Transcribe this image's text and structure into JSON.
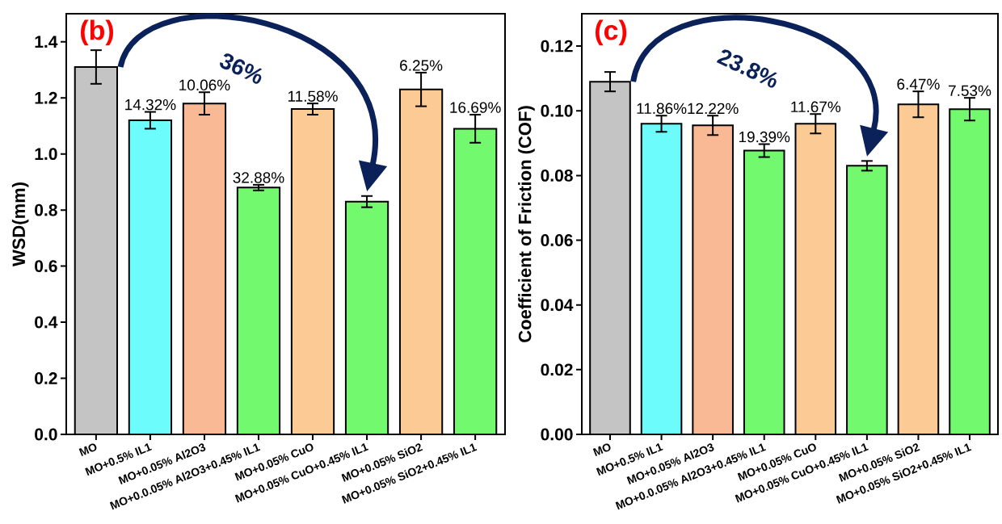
{
  "chart_data": [
    {
      "type": "bar",
      "ylabel": "WSD(mm)",
      "categories": [
        "MO",
        "MO+0.5% IL1",
        "MO+0.05% Al2O3",
        "MO+0.0.05% Al2O3+0.45% IL1",
        "MO+0.05% CuO",
        "MO+0.05% CuO+0.45% IL1",
        "MO+0.05% SiO2",
        "MO+0.05% SiO2+0.45% IL1"
      ],
      "values": [
        1.31,
        1.12,
        1.18,
        0.88,
        1.16,
        0.83,
        1.23,
        1.09
      ],
      "errors": [
        0.06,
        0.03,
        0.04,
        0.01,
        0.02,
        0.02,
        0.06,
        0.05
      ],
      "colors": [
        "#c4c4c4",
        "#6cfcfc",
        "#f9b994",
        "#72f96e",
        "#fcca94",
        "#72f96e",
        "#fcca94",
        "#72f96e"
      ],
      "annotations": [
        "(b)",
        "36%",
        {
          "text": "14.32%",
          "x": "MO+0.5% IL1",
          "y": 1.15
        },
        {
          "text": "10.06%",
          "x": "MO+0.05% Al2O3",
          "y": 1.22
        },
        {
          "text": "32.88%",
          "x": "MO+0.0.05% Al2O3+0.45% IL1",
          "y": 0.89
        },
        {
          "text": "11.58%",
          "x": "MO+0.05% CuO",
          "y": 1.18
        },
        {
          "text": "6.25%",
          "x": "MO+0.05% SiO2",
          "y": 1.29
        },
        {
          "text": "16.69%",
          "x": "MO+0.05% SiO2+0.45% IL1",
          "y": 1.14
        }
      ],
      "ylim": [
        0,
        1.5
      ],
      "yticks": [
        {
          "value": 0,
          "label": "0.0"
        },
        {
          "value": 0.2,
          "label": "0.2"
        },
        {
          "value": 0.4,
          "label": "0.4"
        },
        {
          "value": 0.6,
          "label": "0.6"
        },
        {
          "value": 0.8,
          "label": "0.8"
        },
        {
          "value": 1,
          "label": "1.0"
        },
        {
          "value": 1.2,
          "label": "1.2"
        },
        {
          "value": 1.4,
          "label": "1.4"
        }
      ]
    },
    {
      "type": "bar",
      "ylabel": "Coefficient of Friction (COF)",
      "categories": [
        "MO",
        "MO+0.5% IL1",
        "MO+0.05% Al2O3",
        "MO+0.0.05% Al2O3+0.45% IL1",
        "MO+0.05% CuO",
        "MO+0.05% CuO+0.45% IL1",
        "MO+0.05% SiO2",
        "MO+0.05% SiO2+0.45% IL1"
      ],
      "values": [
        0.109,
        0.096,
        0.0955,
        0.0877,
        0.096,
        0.083,
        0.102,
        0.1005
      ],
      "errors": [
        0.003,
        0.0025,
        0.003,
        0.002,
        0.003,
        0.0015,
        0.004,
        0.0035
      ],
      "colors": [
        "#c4c4c4",
        "#6cfcfc",
        "#f9b994",
        "#72f96e",
        "#fcca94",
        "#72f96e",
        "#fcca94",
        "#72f96e"
      ],
      "annotations": [
        "(c)",
        "23.8%",
        {
          "text": "11.86%",
          "x": "MO+0.5% IL1",
          "y": 0.0985
        },
        {
          "text": "12.22%",
          "x": "MO+0.05% Al2O3",
          "y": 0.0985
        },
        {
          "text": "19.39%",
          "x": "MO+0.0.05% Al2O3+0.45% IL1",
          "y": 0.0897
        },
        {
          "text": "11.67%",
          "x": "MO+0.05% CuO",
          "y": 0.099
        },
        {
          "text": "6.47%",
          "x": "MO+0.05% SiO2",
          "y": 0.106
        },
        {
          "text": "7.53%",
          "x": "MO+0.05% SiO2+0.45% IL1",
          "y": 0.104
        }
      ],
      "ylim": [
        0,
        0.13
      ],
      "yticks": [
        {
          "value": 0,
          "label": "0.00"
        },
        {
          "value": 0.02,
          "label": "0.02"
        },
        {
          "value": 0.04,
          "label": "0.04"
        },
        {
          "value": 0.06,
          "label": "0.06"
        },
        {
          "value": 0.08,
          "label": "0.08"
        },
        {
          "value": 0.1,
          "label": "0.10"
        },
        {
          "value": 0.12,
          "label": "0.12"
        }
      ]
    }
  ]
}
